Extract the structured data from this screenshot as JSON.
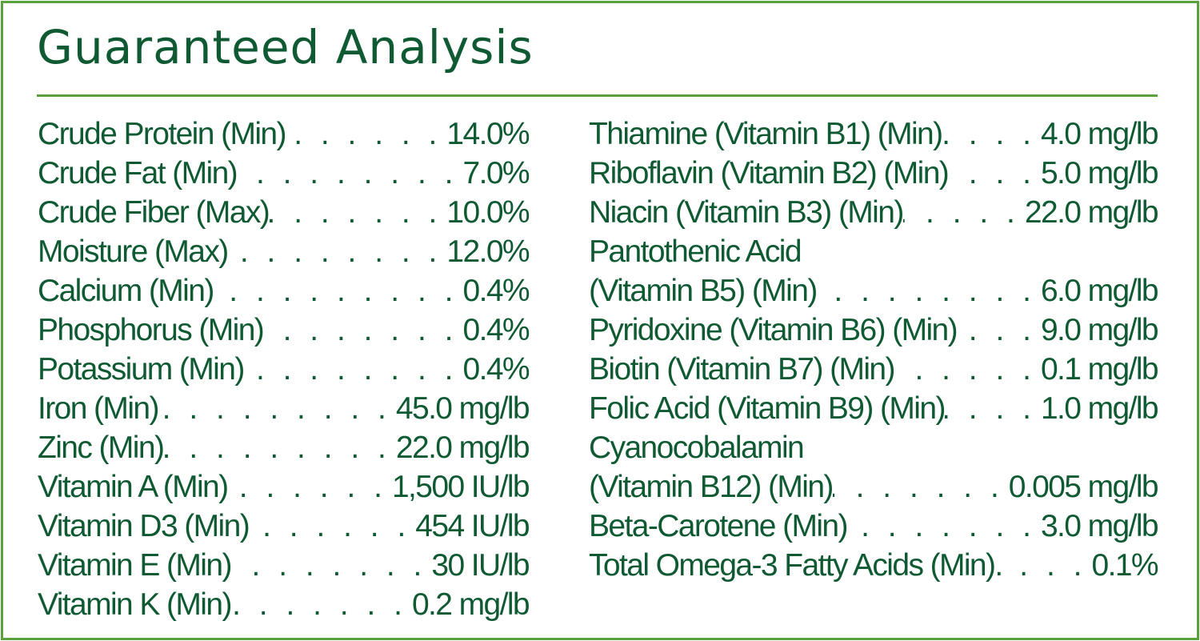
{
  "title": "Guaranteed Analysis",
  "colors": {
    "border": "#5aa03c",
    "text": "#0f5a33"
  },
  "left_column": [
    {
      "label": "Crude Protein (Min)",
      "value": "14.0%"
    },
    {
      "label": "Crude Fat (Min)",
      "value": "7.0%"
    },
    {
      "label": "Crude Fiber (Max)",
      "value": "10.0%"
    },
    {
      "label": "Moisture (Max)",
      "value": "12.0%"
    },
    {
      "label": "Calcium (Min)",
      "value": "0.4%"
    },
    {
      "label": "Phosphorus (Min)",
      "value": "0.4%"
    },
    {
      "label": "Potassium (Min)",
      "value": "0.4%"
    },
    {
      "label": "Iron (Min)",
      "value": "45.0 mg/lb"
    },
    {
      "label": "Zinc (Min)",
      "value": "22.0 mg/lb"
    },
    {
      "label": "Vitamin A (Min)",
      "value": "1,500 IU/lb"
    },
    {
      "label": "Vitamin D3 (Min)",
      "value": "454 IU/lb"
    },
    {
      "label": "Vitamin E (Min)",
      "value": "30 IU/lb"
    },
    {
      "label": "Vitamin K (Min)",
      "value": "0.2 mg/lb"
    }
  ],
  "right_column": [
    {
      "label": "Thiamine (Vitamin B1) (Min)",
      "value": "4.0 mg/lb"
    },
    {
      "label": "Riboflavin (Vitamin B2) (Min)",
      "value": "5.0 mg/lb"
    },
    {
      "label": "Niacin (Vitamin B3) (Min)",
      "value": "22.0 mg/lb"
    },
    {
      "label": "Pantothenic Acid",
      "value": ""
    },
    {
      "label": "(Vitamin B5) (Min)",
      "value": "6.0 mg/lb"
    },
    {
      "label": "Pyridoxine (Vitamin B6) (Min)",
      "value": "9.0 mg/lb"
    },
    {
      "label": "Biotin (Vitamin B7) (Min)",
      "value": "0.1 mg/lb"
    },
    {
      "label": "Folic Acid (Vitamin B9) (Min)",
      "value": "1.0 mg/lb"
    },
    {
      "label": "Cyanocobalamin",
      "value": ""
    },
    {
      "label": "(Vitamin B12) (Min)",
      "value": "0.005 mg/lb"
    },
    {
      "label": "Beta-Carotene (Min)",
      "value": "3.0 mg/lb"
    },
    {
      "label": "Total Omega-3 Fatty Acids (Min).",
      "value": "0.1%"
    }
  ]
}
